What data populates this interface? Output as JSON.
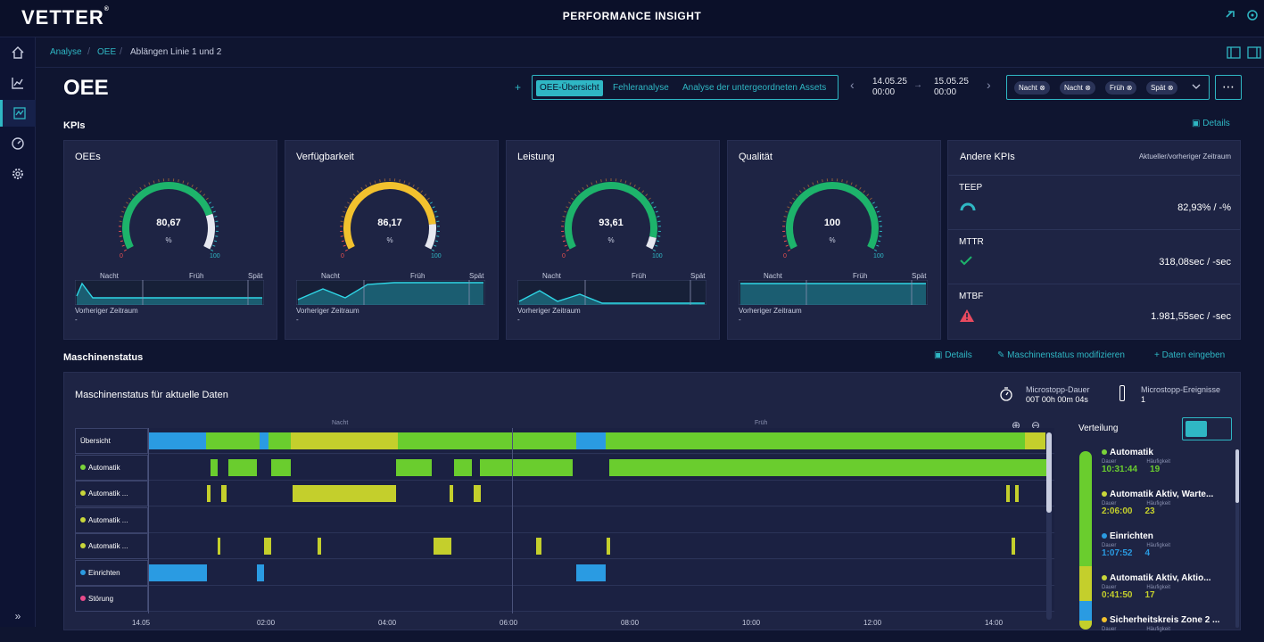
{
  "app": {
    "logo": "VETTER",
    "logo_mark": "®",
    "title": "PERFORMANCE INSIGHT"
  },
  "breadcrumb": [
    "Analyse",
    "OEE",
    "Ablängen Linie 1 und 2"
  ],
  "page": {
    "title": "OEE",
    "plus": "+",
    "tabs": [
      "OEE-Übersicht",
      "Fehleranalyse",
      "Analyse der untergeordneten Assets"
    ],
    "date_from": {
      "date": "14.05.25",
      "time": "00:00"
    },
    "date_arrow": "→",
    "date_to": {
      "date": "15.05.25",
      "time": "00:00"
    },
    "filters": [
      "Nacht",
      "Nacht",
      "Früh",
      "Spät"
    ],
    "more": "⋯"
  },
  "kpis": {
    "section_title": "KPIs",
    "details_label": "Details",
    "cards": [
      {
        "title": "OEEs",
        "value": "80,67",
        "fraction": 0.8067,
        "color": "#1db36b",
        "unit": "%",
        "min": "0",
        "max": "100",
        "shifts": [
          "Nacht",
          "Früh",
          "Spät"
        ],
        "prev_label": "Vorheriger Zeitraum",
        "prev_value": "-"
      },
      {
        "title": "Verfügbarkeit",
        "value": "86,17",
        "fraction": 0.8617,
        "color": "#f2c12e",
        "unit": "%",
        "min": "0",
        "max": "100",
        "shifts": [
          "Nacht",
          "Früh",
          "Spät"
        ],
        "prev_label": "Vorheriger Zeitraum",
        "prev_value": "-"
      },
      {
        "title": "Leistung",
        "value": "93,61",
        "fraction": 0.9361,
        "color": "#1db36b",
        "unit": "%",
        "min": "0",
        "max": "100",
        "shifts": [
          "Nacht",
          "Früh",
          "Spät"
        ],
        "prev_label": "Vorheriger Zeitraum",
        "prev_value": "-"
      },
      {
        "title": "Qualität",
        "value": "100",
        "fraction": 1.0,
        "color": "#1db36b",
        "unit": "%",
        "min": "0",
        "max": "100",
        "shifts": [
          "Nacht",
          "Früh",
          "Spät"
        ],
        "prev_label": "Vorheriger Zeitraum",
        "prev_value": "-"
      }
    ],
    "other": {
      "title": "Andere KPIs",
      "subtitle": "Aktueller/vorheriger Zeitraum",
      "rows": [
        {
          "name": "TEEP",
          "value": "82,93% / -%",
          "icon": "gauge-icon",
          "icon_color": "#2fb7c4"
        },
        {
          "name": "MTTR",
          "value": "318,08sec / -sec",
          "icon": "check-icon",
          "icon_color": "#1db36b"
        },
        {
          "name": "MTBF",
          "value": "1.981,55sec / -sec",
          "icon": "warning-icon",
          "icon_color": "#e84a5f"
        }
      ]
    }
  },
  "machine_status": {
    "section_title": "Maschinenstatus",
    "actions": [
      "Details",
      "Maschinenstatus modifizieren",
      "Daten eingeben"
    ],
    "panel_title": "Maschinenstatus für aktuelle Daten",
    "microstop_duration_label": "Microstopp-Dauer",
    "microstop_duration_value": "00T 00h 00m 04s",
    "microstop_events_label": "Microstopp-Ereignisse",
    "microstop_events_value": "1",
    "shift_labels": [
      "Nacht",
      "Früh"
    ],
    "axis_ticks": [
      "14.05",
      "02:00",
      "04:00",
      "06:00",
      "08:00",
      "10:00",
      "12:00",
      "14:00"
    ],
    "rows": [
      {
        "label": "Übersicht",
        "dot": ""
      },
      {
        "label": "Automatik",
        "dot": "#7ad33a"
      },
      {
        "label": "Automatik ...",
        "dot": "#c8d63a"
      },
      {
        "label": "Automatik ...",
        "dot": "#c8d63a"
      },
      {
        "label": "Automatik ...",
        "dot": "#c8d63a"
      },
      {
        "label": "Einrichten",
        "dot": "#2b9ae0"
      },
      {
        "label": "Störung",
        "dot": "#e84a8a"
      }
    ],
    "colors": {
      "auto": "#6acd2e",
      "auto_wait": "#c4cf2c",
      "setup": "#2a9be2"
    },
    "distribution": {
      "title": "Verteilung",
      "dauer_label": "Dauer",
      "haeufigkeit_label": "Häufigkeit",
      "items": [
        {
          "name": "Automatik",
          "dot": "#7ad33a",
          "duration": "10:31:44",
          "count": "19",
          "color": "#6acd2e"
        },
        {
          "name": "Automatik Aktiv, Warte...",
          "dot": "#c8d63a",
          "duration": "2:06:00",
          "count": "23",
          "color": "#c4cf2c"
        },
        {
          "name": "Einrichten",
          "dot": "#2b9ae0",
          "duration": "1:07:52",
          "count": "4",
          "color": "#2a9be2"
        },
        {
          "name": "Automatik Aktiv, Aktio...",
          "dot": "#c8d63a",
          "duration": "0:41:50",
          "count": "17",
          "color": "#c4cf2c"
        },
        {
          "name": "Sicherheitskreis Zone 2 ...",
          "dot": "#f2c12e",
          "duration": "",
          "count": "",
          "color": "#f2c12e"
        }
      ]
    }
  }
}
